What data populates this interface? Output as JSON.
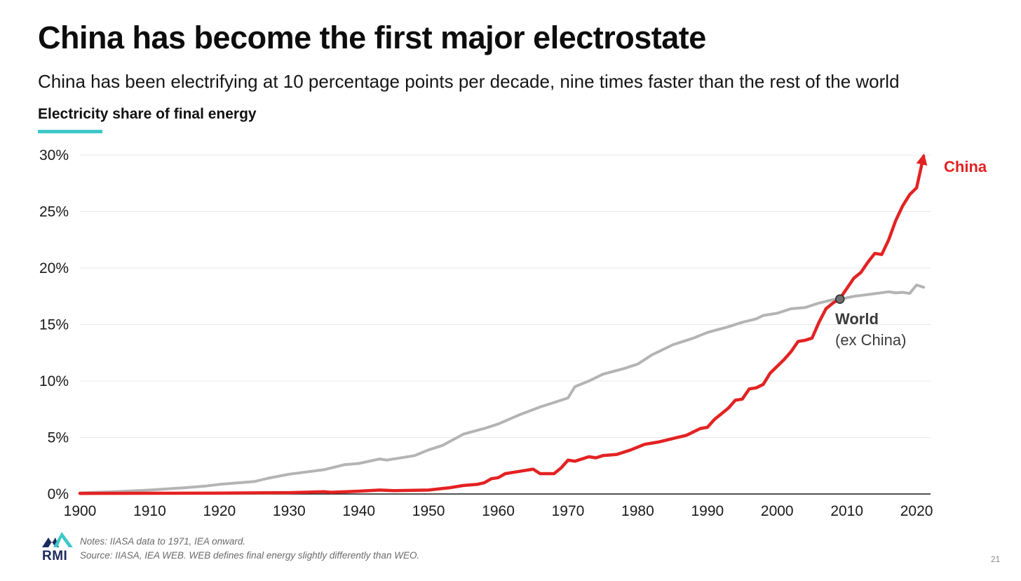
{
  "slide": {
    "title": "China has become the first major electrostate",
    "subtitle": "China has been electrifying at 10 percentage points per decade, nine times faster than the rest of the world",
    "section_label": "Electricity share of final energy",
    "page_number": "21",
    "accent_color": "#3ec8c9"
  },
  "footer": {
    "logo_text": "RMI",
    "note": "Notes: IIASA data to 1971, IEA onward.",
    "source": "Source: IIASA, IEA WEB. WEB defines final energy slightly differently than WEO."
  },
  "chart_data": {
    "type": "line",
    "title": "Electricity share of final energy",
    "xlabel": "",
    "ylabel": "",
    "x_ticks": [
      "1900",
      "1910",
      "1920",
      "1930",
      "1940",
      "1950",
      "1960",
      "1970",
      "1980",
      "1990",
      "2000",
      "2010",
      "2020"
    ],
    "y_ticks": [
      "0%",
      "5%",
      "10%",
      "15%",
      "20%",
      "25%",
      "30%"
    ],
    "xlim": [
      1900,
      2021
    ],
    "ylim": [
      0,
      30
    ],
    "y_unit": "%",
    "grid": true,
    "series": [
      {
        "name": "World",
        "label_line2": "(ex China)",
        "color": "#b4b4b4",
        "points": [
          [
            1900,
            0.1
          ],
          [
            1905,
            0.2
          ],
          [
            1910,
            0.35
          ],
          [
            1915,
            0.55
          ],
          [
            1918,
            0.7
          ],
          [
            1920,
            0.85
          ],
          [
            1925,
            1.1
          ],
          [
            1927,
            1.4
          ],
          [
            1930,
            1.75
          ],
          [
            1935,
            2.15
          ],
          [
            1938,
            2.6
          ],
          [
            1940,
            2.7
          ],
          [
            1943,
            3.1
          ],
          [
            1944,
            3.0
          ],
          [
            1948,
            3.4
          ],
          [
            1950,
            3.9
          ],
          [
            1952,
            4.3
          ],
          [
            1955,
            5.3
          ],
          [
            1958,
            5.8
          ],
          [
            1960,
            6.2
          ],
          [
            1963,
            7.0
          ],
          [
            1966,
            7.7
          ],
          [
            1968,
            8.1
          ],
          [
            1970,
            8.5
          ],
          [
            1971,
            9.5
          ],
          [
            1973,
            10.0
          ],
          [
            1975,
            10.6
          ],
          [
            1978,
            11.1
          ],
          [
            1980,
            11.5
          ],
          [
            1982,
            12.3
          ],
          [
            1985,
            13.2
          ],
          [
            1988,
            13.8
          ],
          [
            1990,
            14.3
          ],
          [
            1993,
            14.8
          ],
          [
            1995,
            15.2
          ],
          [
            1997,
            15.5
          ],
          [
            1998,
            15.8
          ],
          [
            2000,
            16.0
          ],
          [
            2002,
            16.4
          ],
          [
            2004,
            16.5
          ],
          [
            2006,
            16.9
          ],
          [
            2008,
            17.2
          ],
          [
            2009,
            17.25
          ],
          [
            2011,
            17.5
          ],
          [
            2013,
            17.65
          ],
          [
            2016,
            17.9
          ],
          [
            2017,
            17.8
          ],
          [
            2018,
            17.85
          ],
          [
            2019,
            17.75
          ],
          [
            2020,
            18.5
          ],
          [
            2021,
            18.3
          ]
        ]
      },
      {
        "name": "China",
        "color": "#e32222",
        "points": [
          [
            1900,
            0.05
          ],
          [
            1920,
            0.08
          ],
          [
            1930,
            0.12
          ],
          [
            1935,
            0.2
          ],
          [
            1936,
            0.15
          ],
          [
            1940,
            0.25
          ],
          [
            1943,
            0.35
          ],
          [
            1945,
            0.3
          ],
          [
            1950,
            0.35
          ],
          [
            1953,
            0.55
          ],
          [
            1955,
            0.75
          ],
          [
            1957,
            0.85
          ],
          [
            1958,
            1.0
          ],
          [
            1959,
            1.35
          ],
          [
            1960,
            1.45
          ],
          [
            1961,
            1.8
          ],
          [
            1963,
            2.0
          ],
          [
            1965,
            2.2
          ],
          [
            1966,
            1.8
          ],
          [
            1968,
            1.8
          ],
          [
            1969,
            2.3
          ],
          [
            1970,
            3.0
          ],
          [
            1971,
            2.9
          ],
          [
            1973,
            3.3
          ],
          [
            1974,
            3.2
          ],
          [
            1975,
            3.4
          ],
          [
            1977,
            3.5
          ],
          [
            1979,
            3.9
          ],
          [
            1981,
            4.4
          ],
          [
            1983,
            4.6
          ],
          [
            1985,
            4.9
          ],
          [
            1987,
            5.2
          ],
          [
            1989,
            5.8
          ],
          [
            1990,
            5.9
          ],
          [
            1991,
            6.6
          ],
          [
            1993,
            7.6
          ],
          [
            1994,
            8.3
          ],
          [
            1995,
            8.4
          ],
          [
            1996,
            9.3
          ],
          [
            1997,
            9.4
          ],
          [
            1998,
            9.7
          ],
          [
            1999,
            10.7
          ],
          [
            2001,
            11.9
          ],
          [
            2002,
            12.6
          ],
          [
            2003,
            13.5
          ],
          [
            2004,
            13.6
          ],
          [
            2005,
            13.8
          ],
          [
            2006,
            15.2
          ],
          [
            2007,
            16.4
          ],
          [
            2008,
            16.9
          ],
          [
            2009,
            17.3
          ],
          [
            2010,
            18.2
          ],
          [
            2011,
            19.1
          ],
          [
            2012,
            19.6
          ],
          [
            2013,
            20.5
          ],
          [
            2014,
            21.3
          ],
          [
            2015,
            21.2
          ],
          [
            2016,
            22.5
          ],
          [
            2017,
            24.2
          ],
          [
            2018,
            25.5
          ],
          [
            2019,
            26.5
          ],
          [
            2020,
            27.1
          ],
          [
            2021,
            29.9
          ]
        ]
      }
    ],
    "crossover_marker": {
      "x": 2009,
      "y": 17.25
    }
  }
}
